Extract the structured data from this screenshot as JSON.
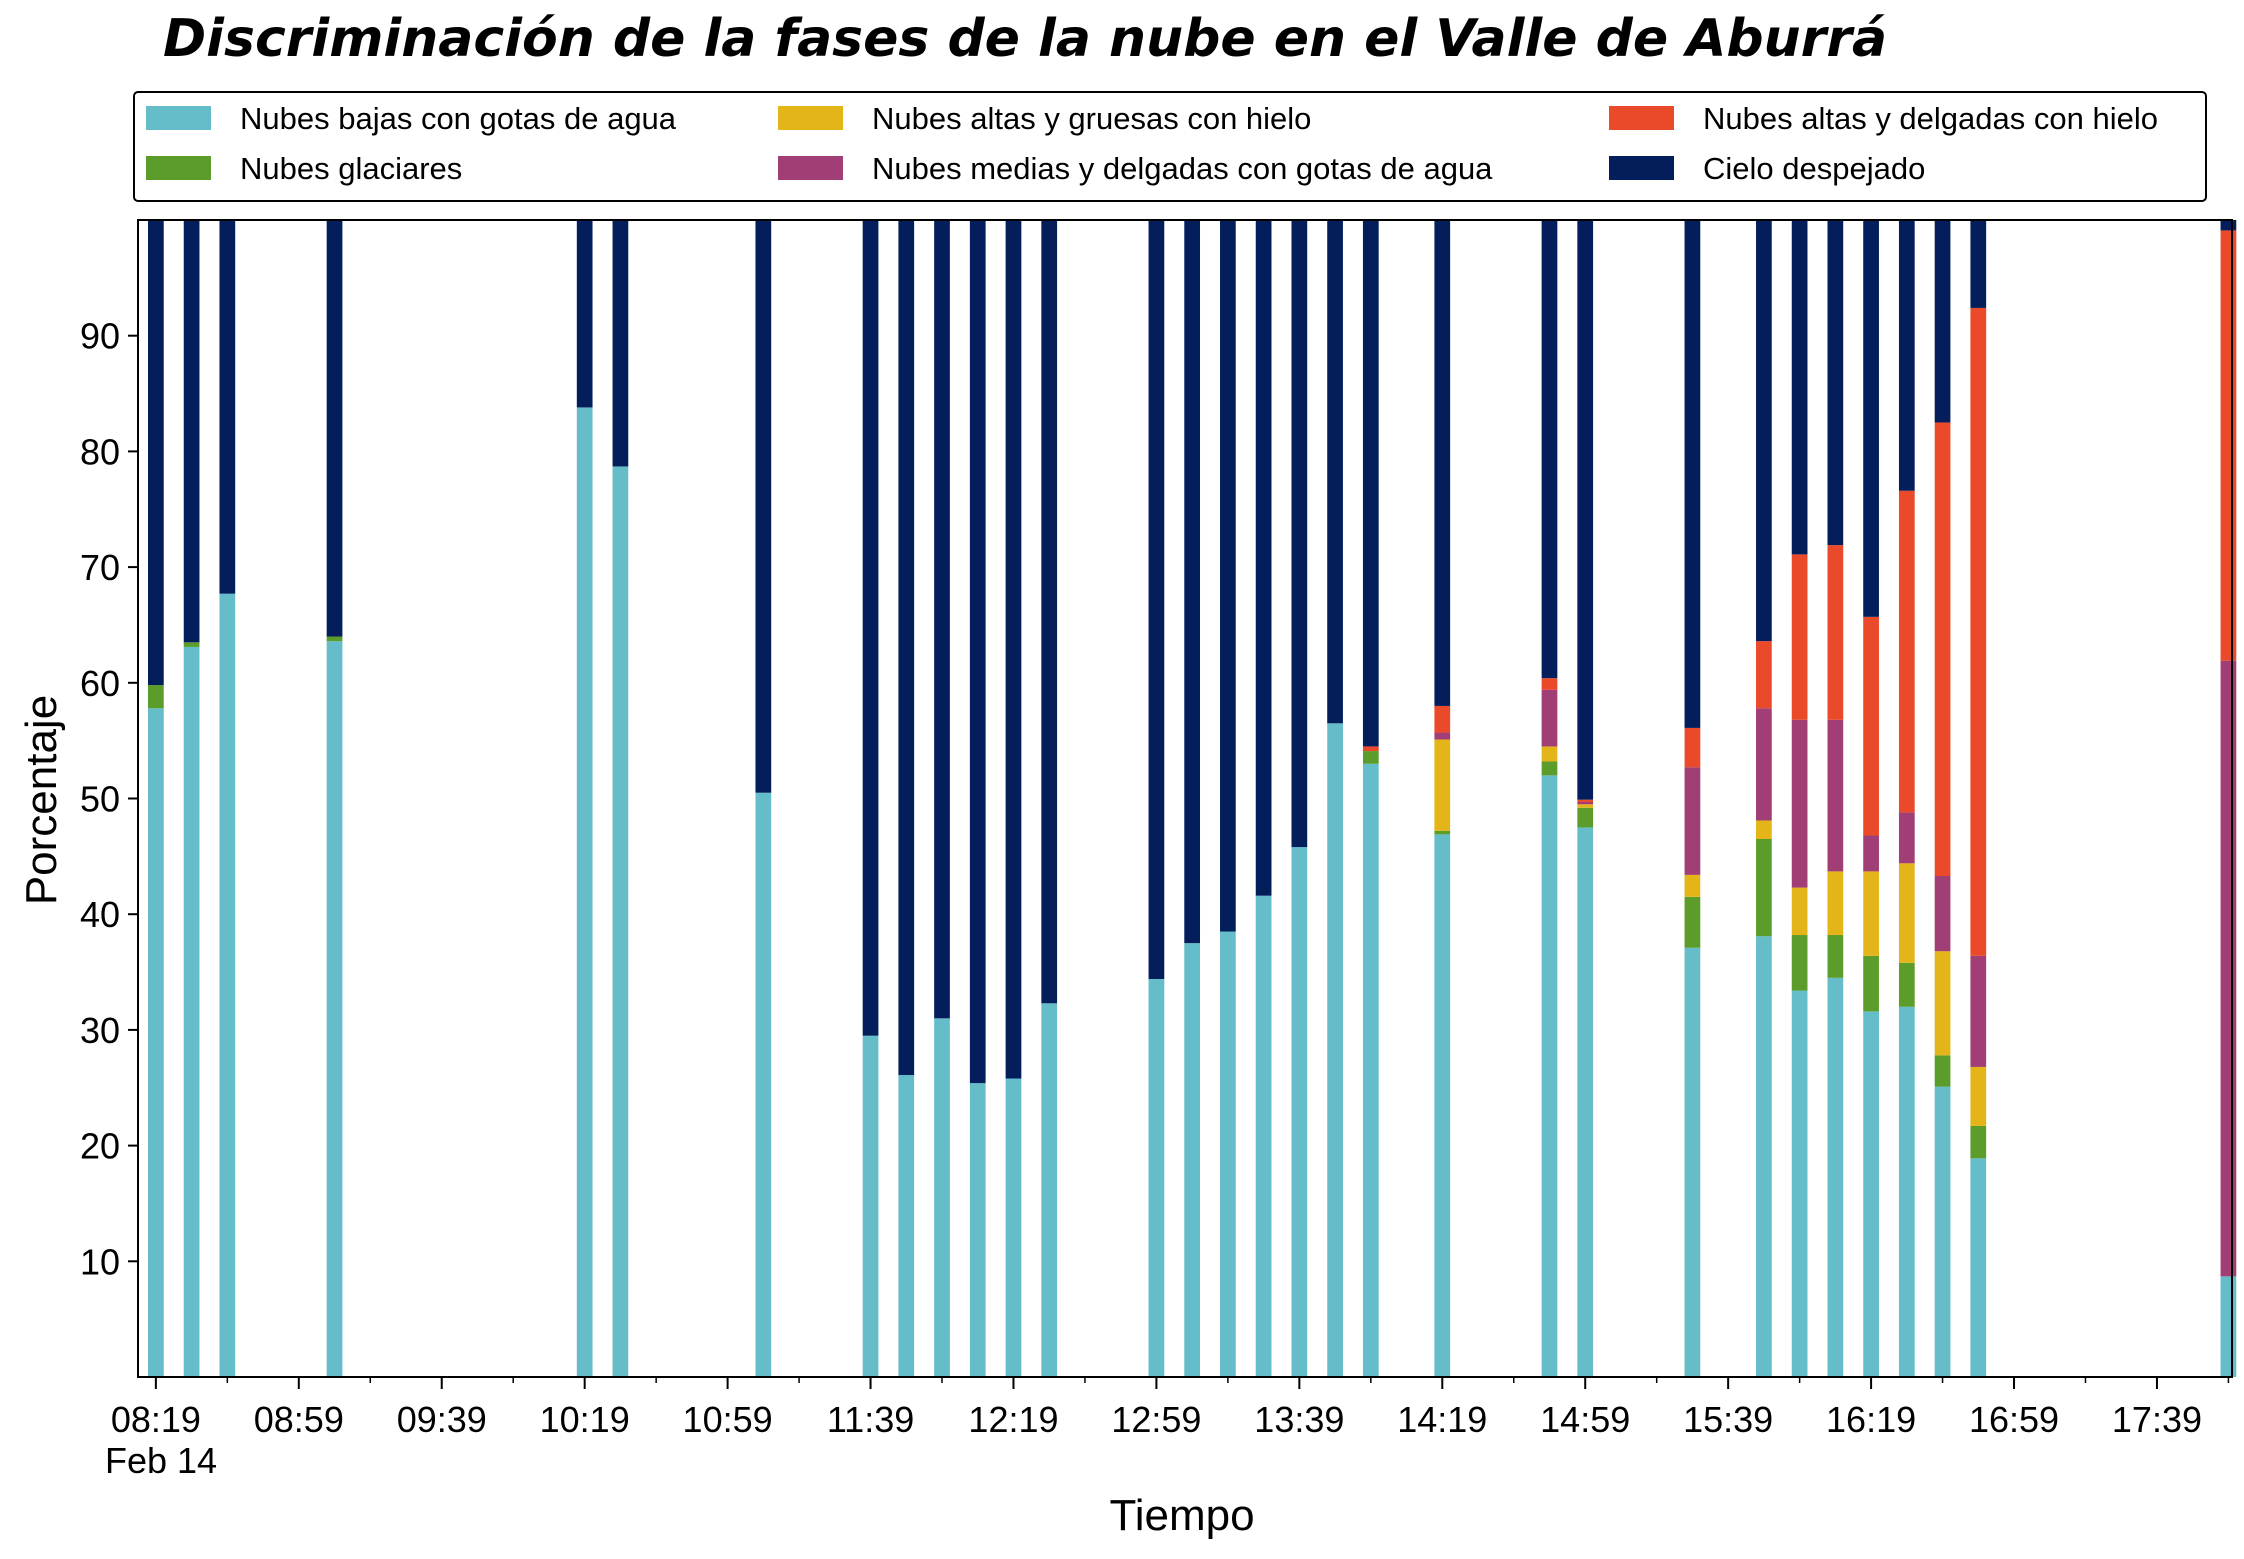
{
  "chart_data": {
    "type": "bar",
    "title": "Discriminación de la fases de la nube en el Valle de Aburrá",
    "xlabel": "Tiempo",
    "ylabel": "Porcentaje",
    "ylim": [
      0,
      100
    ],
    "yticks": [
      10,
      20,
      30,
      40,
      50,
      60,
      70,
      80,
      90
    ],
    "xlim": [
      "08:14",
      "18:00"
    ],
    "xticks": [
      "08:19",
      "08:59",
      "09:39",
      "10:19",
      "10:59",
      "11:39",
      "12:19",
      "12:59",
      "13:39",
      "14:19",
      "14:59",
      "15:39",
      "16:19",
      "16:59",
      "17:39"
    ],
    "xtick_date_label": "Feb 14",
    "stacked": true,
    "grid": false,
    "legend_position": "top",
    "bar_width_minutes": 4.4,
    "x": [
      "08:19",
      "08:29",
      "08:39",
      "09:09",
      "10:19",
      "10:29",
      "11:09",
      "11:39",
      "11:49",
      "11:59",
      "12:09",
      "12:19",
      "12:29",
      "12:59",
      "13:09",
      "13:19",
      "13:29",
      "13:39",
      "13:49",
      "13:59",
      "14:19",
      "14:49",
      "14:59",
      "15:29",
      "15:49",
      "15:59",
      "16:09",
      "16:19",
      "16:29",
      "16:39",
      "16:49",
      "17:59"
    ],
    "series": [
      {
        "name": "Nubes bajas con gotas de agua",
        "color": "#65BDC9",
        "values": [
          57.8,
          63.1,
          67.7,
          63.6,
          83.8,
          78.7,
          50.5,
          29.5,
          26.1,
          31.0,
          25.4,
          25.8,
          32.3,
          34.4,
          37.5,
          38.5,
          41.6,
          45.8,
          56.5,
          53.0,
          46.9,
          52.0,
          47.5,
          37.1,
          38.1,
          33.4,
          34.5,
          31.6,
          32.0,
          25.1,
          18.9,
          8.7
        ]
      },
      {
        "name": "Nubes glaciares",
        "color": "#5C9C2A",
        "values": [
          2.0,
          0.4,
          0,
          0.4,
          0,
          0,
          0,
          0,
          0,
          0,
          0,
          0,
          0,
          0,
          0,
          0,
          0,
          0,
          0,
          1.1,
          0.3,
          1.2,
          1.7,
          4.4,
          8.4,
          4.8,
          3.7,
          4.8,
          3.8,
          2.7,
          2.8,
          0
        ]
      },
      {
        "name": "Nubes altas y gruesas con hielo",
        "color": "#E4B519",
        "values": [
          0,
          0,
          0,
          0,
          0,
          0,
          0,
          0,
          0,
          0,
          0,
          0,
          0,
          0,
          0,
          0,
          0,
          0,
          0,
          0,
          7.9,
          1.3,
          0.3,
          1.9,
          1.6,
          4.1,
          5.5,
          7.3,
          8.6,
          9.0,
          5.1,
          0
        ]
      },
      {
        "name": "Nubes medias y delgadas con gotas de agua",
        "color": "#A03E75",
        "values": [
          0,
          0,
          0,
          0,
          0,
          0,
          0,
          0,
          0,
          0,
          0,
          0,
          0,
          0,
          0,
          0,
          0,
          0,
          0,
          0,
          0.6,
          4.9,
          0.2,
          9.3,
          9.7,
          14.5,
          13.1,
          3.1,
          4.4,
          6.5,
          9.6,
          53.2
        ]
      },
      {
        "name": "Nubes altas y delgadas con hielo",
        "color": "#EA4A2A",
        "values": [
          0,
          0,
          0,
          0,
          0,
          0,
          0,
          0,
          0,
          0,
          0,
          0,
          0,
          0,
          0,
          0,
          0,
          0,
          0,
          0.4,
          2.3,
          1.0,
          0.2,
          3.4,
          5.8,
          14.3,
          15.1,
          18.9,
          27.8,
          39.2,
          56.0,
          37.2
        ]
      },
      {
        "name": "Cielo despejado",
        "color": "#031E5B",
        "values": [
          40.2,
          36.5,
          32.3,
          36.0,
          16.2,
          21.3,
          49.5,
          70.5,
          73.9,
          69.0,
          74.6,
          74.2,
          67.7,
          65.6,
          62.5,
          61.5,
          58.4,
          54.2,
          43.5,
          45.5,
          42.0,
          39.6,
          50.1,
          43.9,
          36.4,
          28.9,
          28.1,
          34.3,
          23.4,
          17.5,
          7.6,
          0.9
        ]
      }
    ]
  }
}
